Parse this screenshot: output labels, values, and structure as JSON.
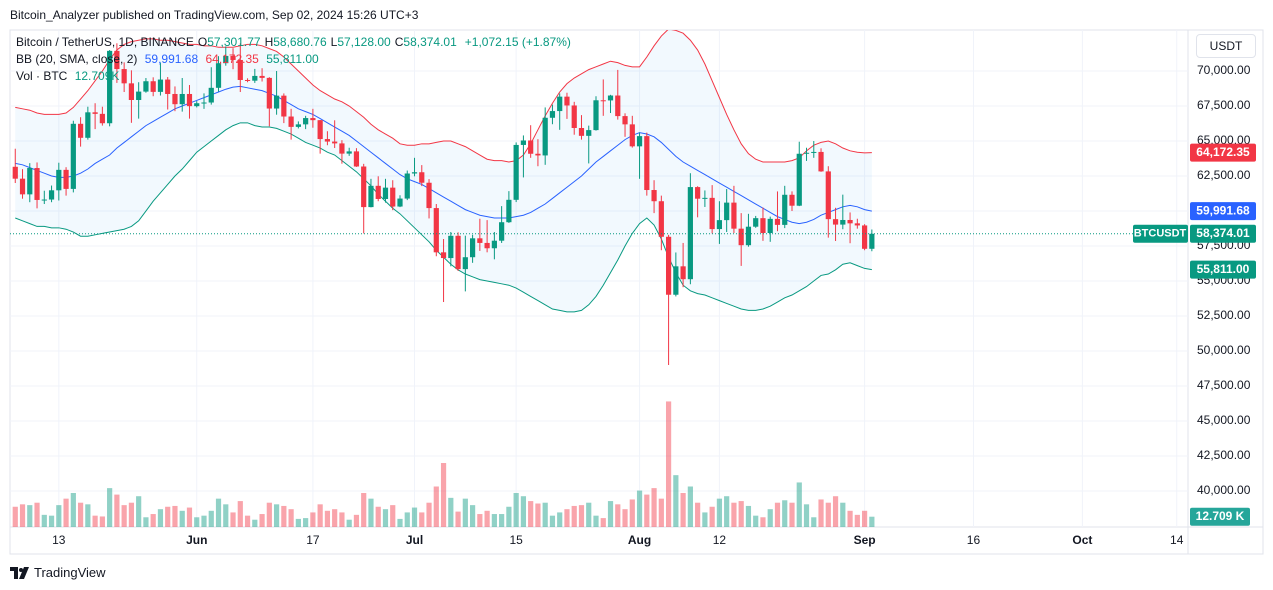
{
  "header": {
    "publisher": "Bitcoin_Analyzer published on TradingView.com, Sep 02, 2024 15:26 UTC+3",
    "currency": "USDT",
    "footer": "TradingView"
  },
  "chart_data": {
    "type": "candlestick",
    "legend": {
      "symbol": "Bitcoin / TetherUS, 1D, BINANCE",
      "ohlc": [
        {
          "key": "O",
          "label": "57,301.77"
        },
        {
          "key": "H",
          "label": "58,680.76"
        },
        {
          "key": "L",
          "label": "57,128.00"
        },
        {
          "key": "C",
          "label": "58,374.01"
        }
      ],
      "change": "+1,072.15 (+1.87%)",
      "bb": {
        "name": "BB (20, SMA, close, 2)",
        "labels": [
          "59,991.68",
          "64,172.35",
          "55,811.00"
        ]
      },
      "vol": {
        "name": "Vol · BTC",
        "label": "12.709K"
      }
    },
    "up_color": "#089981",
    "down_color": "#f23645",
    "grid": true,
    "x": [
      "2024-05-07",
      "2024-05-08",
      "2024-05-09",
      "2024-05-10",
      "2024-05-11",
      "2024-05-12",
      "2024-05-13",
      "2024-05-14",
      "2024-05-15",
      "2024-05-16",
      "2024-05-17",
      "2024-05-18",
      "2024-05-19",
      "2024-05-20",
      "2024-05-21",
      "2024-05-22",
      "2024-05-23",
      "2024-05-24",
      "2024-05-25",
      "2024-05-26",
      "2024-05-27",
      "2024-05-28",
      "2024-05-29",
      "2024-05-30",
      "2024-05-31",
      "2024-06-01",
      "2024-06-02",
      "2024-06-03",
      "2024-06-04",
      "2024-06-05",
      "2024-06-06",
      "2024-06-07",
      "2024-06-08",
      "2024-06-09",
      "2024-06-10",
      "2024-06-11",
      "2024-06-12",
      "2024-06-13",
      "2024-06-14",
      "2024-06-15",
      "2024-06-16",
      "2024-06-17",
      "2024-06-18",
      "2024-06-19",
      "2024-06-20",
      "2024-06-21",
      "2024-06-22",
      "2024-06-23",
      "2024-06-24",
      "2024-06-25",
      "2024-06-26",
      "2024-06-27",
      "2024-06-28",
      "2024-06-29",
      "2024-06-30",
      "2024-07-01",
      "2024-07-02",
      "2024-07-03",
      "2024-07-04",
      "2024-07-05",
      "2024-07-06",
      "2024-07-07",
      "2024-07-08",
      "2024-07-09",
      "2024-07-10",
      "2024-07-11",
      "2024-07-12",
      "2024-07-13",
      "2024-07-14",
      "2024-07-15",
      "2024-07-16",
      "2024-07-17",
      "2024-07-18",
      "2024-07-19",
      "2024-07-20",
      "2024-07-21",
      "2024-07-22",
      "2024-07-23",
      "2024-07-24",
      "2024-07-25",
      "2024-07-26",
      "2024-07-27",
      "2024-07-28",
      "2024-07-29",
      "2024-07-30",
      "2024-07-31",
      "2024-08-01",
      "2024-08-02",
      "2024-08-03",
      "2024-08-04",
      "2024-08-05",
      "2024-08-06",
      "2024-08-07",
      "2024-08-08",
      "2024-08-09",
      "2024-08-10",
      "2024-08-11",
      "2024-08-12",
      "2024-08-13",
      "2024-08-14",
      "2024-08-15",
      "2024-08-16",
      "2024-08-17",
      "2024-08-18",
      "2024-08-19",
      "2024-08-20",
      "2024-08-21",
      "2024-08-22",
      "2024-08-23",
      "2024-08-24",
      "2024-08-25",
      "2024-08-26",
      "2024-08-27",
      "2024-08-28",
      "2024-08-29",
      "2024-08-30",
      "2024-08-31",
      "2024-09-01",
      "2024-09-02"
    ],
    "open": [
      63160,
      62310,
      61190,
      63070,
      60790,
      60820,
      61480,
      62940,
      61580,
      66230,
      65230,
      67050,
      66940,
      66270,
      71440,
      70140,
      69120,
      67930,
      68530,
      69270,
      68510,
      69390,
      68360,
      67630,
      68360,
      67490,
      67700,
      67750,
      68800,
      70560,
      71080,
      70790,
      69360,
      69310,
      69650,
      69510,
      67320,
      68240,
      66750,
      66010,
      66190,
      66640,
      66490,
      65140,
      64960,
      64830,
      64100,
      64260,
      63180,
      60280,
      61800,
      60860,
      61670,
      60320,
      60890,
      62680,
      62770,
      62020,
      60210,
      57050,
      56640,
      58230,
      55850,
      56700,
      58050,
      57720,
      57340,
      57880,
      59200,
      60800,
      64720,
      65040,
      64090,
      63970,
      66660,
      67140,
      68170,
      67540,
      65930,
      65370,
      65780,
      67910,
      67900,
      68250,
      66780,
      66190,
      64620,
      65350,
      61500,
      60700,
      58160,
      54020,
      56050,
      55130,
      61710,
      60880,
      60940,
      58710,
      59350,
      60600,
      58740,
      57560,
      58880,
      59490,
      58430,
      59440,
      59010,
      61160,
      60380,
      64090,
      64160,
      64220,
      62830,
      59420,
      59030,
      59360,
      59120,
      58970,
      57301.77
    ],
    "high": [
      64450,
      62990,
      63420,
      63470,
      61450,
      61820,
      63450,
      63130,
      66450,
      66700,
      67450,
      67700,
      67450,
      71500,
      71980,
      70620,
      70050,
      69200,
      69500,
      69550,
      70600,
      69570,
      68900,
      69500,
      69000,
      67850,
      68400,
      70270,
      71060,
      71760,
      71630,
      71980,
      69480,
      70150,
      70200,
      69560,
      70000,
      68400,
      67300,
      66400,
      66800,
      67300,
      66500,
      65700,
      66480,
      65060,
      64520,
      64490,
      63370,
      62300,
      62480,
      62300,
      62200,
      61130,
      62890,
      63800,
      63280,
      62280,
      60500,
      58000,
      58500,
      58480,
      58240,
      58300,
      59450,
      59350,
      58500,
      60350,
      61420,
      64900,
      65400,
      66130,
      65130,
      67400,
      67600,
      68400,
      68450,
      67800,
      66850,
      66100,
      68200,
      69400,
      68300,
      70080,
      66980,
      66800,
      65600,
      65600,
      62200,
      61100,
      58300,
      57040,
      57720,
      62700,
      61770,
      61470,
      61850,
      60700,
      61570,
      61800,
      59850,
      59800,
      59650,
      60250,
      59600,
      61400,
      61800,
      61400,
      64950,
      64520,
      65000,
      64480,
      63200,
      60230,
      61170,
      59900,
      59450,
      59060,
      58680.76
    ],
    "low": [
      62000,
      60880,
      60630,
      60190,
      60500,
      60630,
      60750,
      61100,
      61330,
      64600,
      65100,
      65850,
      66100,
      66050,
      69150,
      68500,
      66300,
      66600,
      68450,
      68200,
      68250,
      67250,
      67130,
      67100,
      66600,
      67400,
      67300,
      67600,
      68530,
      70380,
      70130,
      68500,
      69200,
      69150,
      69250,
      66050,
      66880,
      66280,
      65100,
      65900,
      65850,
      65950,
      64100,
      64700,
      64500,
      63380,
      63940,
      63150,
      58400,
      60260,
      60700,
      60600,
      60060,
      60280,
      60780,
      62480,
      61780,
      59470,
      56770,
      53500,
      56050,
      55720,
      54260,
      56300,
      57150,
      57050,
      56550,
      57720,
      59150,
      60640,
      62400,
      63800,
      63200,
      63300,
      66200,
      65800,
      66580,
      65450,
      65100,
      63400,
      65740,
      66800,
      67000,
      66530,
      65300,
      64530,
      62300,
      61100,
      59850,
      57200,
      49000,
      53900,
      54560,
      54770,
      59550,
      60290,
      58400,
      57650,
      58500,
      58430,
      56080,
      57450,
      58800,
      57870,
      57800,
      58560,
      58780,
      60000,
      60350,
      63580,
      63800,
      62800,
      58100,
      57860,
      58700,
      57700,
      58740,
      57200,
      57128.0
    ],
    "close": [
      62310,
      61190,
      63070,
      60790,
      60820,
      61480,
      62940,
      61580,
      66230,
      65230,
      67050,
      66940,
      66270,
      71440,
      70140,
      69120,
      67930,
      68530,
      69270,
      68510,
      69390,
      68360,
      67630,
      68360,
      67490,
      67700,
      67750,
      68800,
      70560,
      71080,
      70790,
      69360,
      69310,
      69650,
      69510,
      67320,
      68240,
      66750,
      66010,
      66190,
      66640,
      66490,
      65140,
      64960,
      64830,
      64100,
      64260,
      63180,
      60280,
      61800,
      60860,
      61670,
      60320,
      60890,
      62680,
      62770,
      62020,
      60210,
      57050,
      56640,
      58230,
      55850,
      56700,
      58050,
      57720,
      57340,
      57880,
      59200,
      60800,
      64720,
      65040,
      64090,
      63970,
      66660,
      67140,
      68170,
      67540,
      65930,
      65370,
      65780,
      67910,
      67900,
      68250,
      66780,
      66190,
      64620,
      65350,
      61500,
      60700,
      58160,
      54020,
      56050,
      55130,
      61710,
      60880,
      60940,
      58710,
      59350,
      60600,
      58740,
      57560,
      58880,
      59490,
      58430,
      59440,
      59010,
      61160,
      60380,
      64090,
      64160,
      64220,
      62830,
      59420,
      59030,
      59360,
      59120,
      58970,
      57301.77,
      58374.01
    ],
    "bands": {
      "fill": "rgba(33,150,243,0.06)",
      "upper": {
        "color": "#f23645",
        "values": [
          67400,
          67300,
          67200,
          67000,
          66900,
          66900,
          66900,
          67000,
          67400,
          68000,
          68600,
          69300,
          70000,
          70800,
          71500,
          71900,
          72100,
          72200,
          72300,
          72300,
          72200,
          72200,
          72100,
          72000,
          71900,
          71900,
          71800,
          71800,
          71700,
          71700,
          71700,
          71800,
          71900,
          71900,
          71800,
          71600,
          71400,
          71000,
          70500,
          70000,
          69500,
          69000,
          68600,
          68300,
          68000,
          67800,
          67500,
          67100,
          66700,
          66200,
          65800,
          65500,
          65200,
          64800,
          64700,
          64700,
          64800,
          64800,
          64900,
          65000,
          65000,
          64800,
          64600,
          64300,
          64000,
          63700,
          63600,
          63600,
          63500,
          63600,
          64000,
          64800,
          65800,
          66800,
          67700,
          68500,
          69100,
          69500,
          69800,
          70100,
          70300,
          70500,
          70700,
          70600,
          70400,
          70300,
          70300,
          71000,
          71800,
          72500,
          73000,
          72900,
          72700,
          72200,
          71500,
          70500,
          69300,
          68100,
          66900,
          65800,
          64800,
          64100,
          63700,
          63500,
          63500,
          63500,
          63500,
          63600,
          63800,
          64300,
          64700,
          64900,
          65000,
          64800,
          64500,
          64300,
          64200,
          64150,
          64172.35
        ]
      },
      "middle": {
        "color": "#2962ff",
        "values": [
          63400,
          63300,
          63100,
          62900,
          62700,
          62500,
          62400,
          62400,
          62500,
          62700,
          63000,
          63400,
          63700,
          64000,
          64500,
          64900,
          65300,
          65700,
          66100,
          66400,
          66700,
          67000,
          67300,
          67500,
          67700,
          67900,
          68100,
          68300,
          68500,
          68700,
          68850,
          68900,
          68800,
          68700,
          68600,
          68400,
          68200,
          67900,
          67600,
          67300,
          67100,
          66900,
          66600,
          66300,
          66000,
          65700,
          65400,
          65000,
          64600,
          64200,
          63800,
          63400,
          63000,
          62600,
          62300,
          62100,
          61900,
          61600,
          61300,
          61000,
          60700,
          60400,
          60100,
          59900,
          59700,
          59600,
          59500,
          59500,
          59500,
          59600,
          59700,
          59900,
          60200,
          60500,
          60900,
          61300,
          61700,
          62100,
          62500,
          63000,
          63500,
          63900,
          64300,
          64700,
          65100,
          65400,
          65600,
          65500,
          65300,
          64900,
          64400,
          63900,
          63500,
          63200,
          62900,
          62600,
          62300,
          62000,
          61700,
          61400,
          61100,
          60800,
          60500,
          60200,
          59900,
          59600,
          59400,
          59200,
          59100,
          59200,
          59400,
          59700,
          59900,
          60100,
          60300,
          60400,
          60300,
          60100,
          59991.68
        ]
      },
      "lower": {
        "color": "#089981",
        "values": [
          59500,
          59300,
          59100,
          58900,
          58900,
          58800,
          58800,
          58700,
          58500,
          58200,
          58200,
          58300,
          58400,
          58500,
          58600,
          58700,
          58900,
          59300,
          60000,
          60700,
          61300,
          61900,
          62500,
          63000,
          63600,
          64200,
          64600,
          65000,
          65400,
          65800,
          66100,
          66300,
          66300,
          66100,
          66000,
          66000,
          65900,
          65700,
          65500,
          65200,
          64900,
          64700,
          64500,
          64200,
          64000,
          63600,
          63200,
          62800,
          62300,
          61800,
          61200,
          60700,
          60200,
          59800,
          59300,
          58800,
          58300,
          57800,
          57200,
          56700,
          56200,
          55800,
          55500,
          55300,
          55100,
          55000,
          54900,
          54800,
          54700,
          54500,
          54200,
          53900,
          53600,
          53300,
          53000,
          52900,
          52800,
          52800,
          52900,
          53300,
          53900,
          54700,
          55600,
          56500,
          57500,
          58400,
          59100,
          59500,
          59000,
          58000,
          56700,
          55600,
          54700,
          54300,
          54100,
          54000,
          53800,
          53600,
          53400,
          53200,
          53000,
          52900,
          52900,
          53000,
          53200,
          53500,
          53800,
          54000,
          54300,
          54600,
          55000,
          55400,
          55500,
          55800,
          56200,
          56300,
          56100,
          55900,
          55811.0
        ]
      }
    },
    "volume": {
      "up_color": "rgba(8,153,129,0.45)",
      "down_color": "rgba(242,54,69,0.45)",
      "values": [
        25,
        28,
        27,
        30,
        15,
        14,
        27,
        35,
        42,
        30,
        28,
        14,
        13,
        48,
        40,
        27,
        30,
        38,
        12,
        16,
        22,
        25,
        26,
        20,
        24,
        12,
        14,
        20,
        35,
        28,
        18,
        32,
        14,
        9,
        16,
        30,
        28,
        26,
        22,
        10,
        11,
        18,
        28,
        20,
        22,
        18,
        9,
        15,
        42,
        35,
        25,
        22,
        27,
        10,
        18,
        24,
        18,
        30,
        50,
        79,
        36,
        19,
        35,
        27,
        16,
        20,
        16,
        16,
        25,
        42,
        38,
        32,
        29,
        30,
        14,
        18,
        22,
        26,
        27,
        30,
        14,
        11,
        32,
        28,
        22,
        34,
        45,
        40,
        48,
        35,
        155,
        64,
        42,
        50,
        30,
        18,
        25,
        35,
        38,
        30,
        32,
        26,
        14,
        12,
        22,
        30,
        33,
        30,
        55,
        28,
        12,
        34,
        30,
        38,
        30,
        20,
        15,
        20,
        12.709
      ]
    },
    "ylim": [
      37430,
      72930
    ],
    "yticks": [
      {
        "value": 40000,
        "label": "40,000.00"
      },
      {
        "value": 42500,
        "label": "42,500.00"
      },
      {
        "value": 45000,
        "label": "45,000.00"
      },
      {
        "value": 47500,
        "label": "47,500.00"
      },
      {
        "value": 50000,
        "label": "50,000.00"
      },
      {
        "value": 52500,
        "label": "52,500.00"
      },
      {
        "value": 55000,
        "label": "55,000.00"
      },
      {
        "value": 57500,
        "label": "57,500.00"
      },
      {
        "value": 60000,
        "label": "60,000.00"
      },
      {
        "value": 62500,
        "label": "62,500.00"
      },
      {
        "value": 65000,
        "label": "65,000.00"
      },
      {
        "value": 67500,
        "label": "67,500.00"
      },
      {
        "value": 70000,
        "label": "70,000.00"
      }
    ],
    "xlim": [
      "2024-05-06",
      "2024-10-15"
    ],
    "xticks": [
      {
        "value": "2024-05-13",
        "label": "13"
      },
      {
        "value": "2024-06-01",
        "label": "Jun"
      },
      {
        "value": "2024-06-17",
        "label": "17"
      },
      {
        "value": "2024-07-01",
        "label": "Jul"
      },
      {
        "value": "2024-07-15",
        "label": "15"
      },
      {
        "value": "2024-08-01",
        "label": "Aug"
      },
      {
        "value": "2024-08-12",
        "label": "12"
      },
      {
        "value": "2024-09-01",
        "label": "Sep"
      },
      {
        "value": "2024-09-16",
        "label": "16"
      },
      {
        "value": "2024-10-01",
        "label": "Oct"
      },
      {
        "value": "2024-10-14",
        "label": "14"
      }
    ],
    "price_badges": [
      {
        "value": 64172.35,
        "label": "64,172.35",
        "color": "#f23645"
      },
      {
        "value": 59991.68,
        "label": "59,991.68",
        "color": "#2962ff"
      },
      {
        "name": "BTCUSDT",
        "value": 58374.01,
        "label": "58,374.01",
        "color": "#089981"
      },
      {
        "value": 55811.0,
        "label": "55,811.00",
        "color": "#089981"
      }
    ],
    "volume_badge": {
      "value": 12.709,
      "label": "12.709 K",
      "color": "#26a69a"
    }
  }
}
